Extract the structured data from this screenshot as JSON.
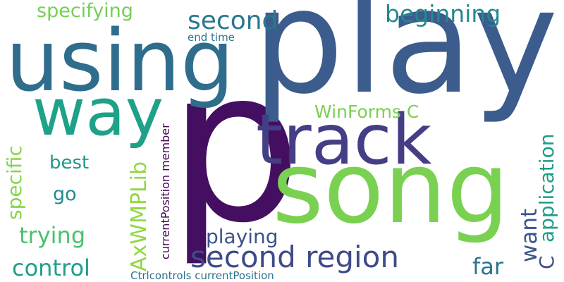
{
  "words": {
    "p": {
      "text": "p",
      "color": "#440f61"
    },
    "play": {
      "text": "play",
      "color": "#3b5c8c"
    },
    "using": {
      "text": "using",
      "color": "#2f6d8d"
    },
    "song": {
      "text": "song",
      "color": "#7ad151"
    },
    "track": {
      "text": "track",
      "color": "#433e85"
    },
    "way": {
      "text": "way",
      "color": "#1fa187"
    },
    "second_region": {
      "text": "second region",
      "color": "#3e4a89"
    },
    "second": {
      "text": "second",
      "color": "#2a788e"
    },
    "beginning": {
      "text": "beginning",
      "color": "#23898e"
    },
    "specifying": {
      "text": "specifying",
      "color": "#73d056"
    },
    "end_time": {
      "text": "end time",
      "color": "#2a788e"
    },
    "winforms_c": {
      "text": "WinForms C",
      "color": "#7ad151"
    },
    "axwmplib": {
      "text": "AxWMPLib",
      "color": "#90d743"
    },
    "currentposition_member": {
      "text": "currentPosition member",
      "color": "#440154"
    },
    "ctrlcontrols": {
      "text": "Ctrlcontrols currentPosition",
      "color": "#2c728e"
    },
    "specific": {
      "text": "specific",
      "color": "#86d549"
    },
    "best": {
      "text": "best",
      "color": "#1f978b"
    },
    "go": {
      "text": "go",
      "color": "#238a8d"
    },
    "trying": {
      "text": "trying",
      "color": "#4ac16d"
    },
    "control": {
      "text": "control",
      "color": "#1f9e89"
    },
    "playing": {
      "text": "playing",
      "color": "#3b528b"
    },
    "far": {
      "text": "far",
      "color": "#2c738e"
    },
    "want": {
      "text": "want",
      "color": "#39568c"
    },
    "application": {
      "text": "application",
      "color": "#1e9c89"
    },
    "c": {
      "text": "C",
      "color": "#3d4e8a"
    }
  }
}
